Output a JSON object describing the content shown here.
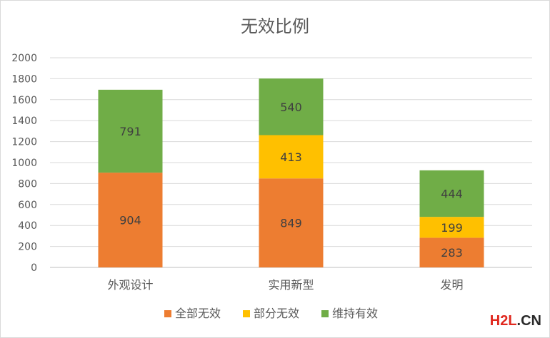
{
  "chart_data": {
    "type": "bar",
    "stacked": true,
    "title": "无效比例",
    "categories": [
      "外观设计",
      "实用新型",
      "发明"
    ],
    "series": [
      {
        "name": "全部无效",
        "color": "#ED7D31",
        "values": [
          904,
          849,
          283
        ]
      },
      {
        "name": "部分无效",
        "color": "#FFC000",
        "values": [
          0,
          413,
          199
        ]
      },
      {
        "name": "维持有效",
        "color": "#70AD47",
        "values": [
          791,
          540,
          444
        ]
      }
    ],
    "ylim": [
      0,
      2000
    ],
    "yticks": [
      0,
      200,
      400,
      600,
      800,
      1000,
      1200,
      1400,
      1600,
      1800,
      2000
    ],
    "grid": true,
    "legend": "bottom"
  },
  "watermark": {
    "part1": "H2L",
    "part2": ".CN"
  }
}
